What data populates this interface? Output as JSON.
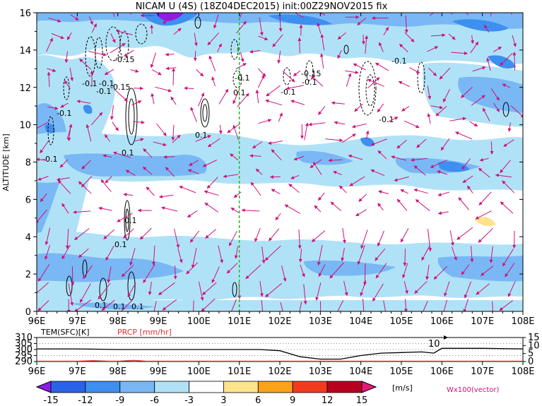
{
  "title": "NICAM U (4S) (18Z04DEC2015) init:00Z29NOV2015 fix",
  "chart_data": [
    {
      "type": "heatmap",
      "title": "NICAM U (4S) (18Z04DEC2015) init:00Z29NOV2015 fix",
      "xlabel": "",
      "ylabel": "ALTITUDE [km]",
      "x_ticks": [
        "96E",
        "97E",
        "98E",
        "99E",
        "100E",
        "101E",
        "102E",
        "103E",
        "104E",
        "105E",
        "106E",
        "107E",
        "108E"
      ],
      "y_ticks": [
        "0",
        "2",
        "4",
        "6",
        "8",
        "10",
        "12",
        "14",
        "16"
      ],
      "xlim": [
        96,
        108
      ],
      "ylim": [
        0,
        16
      ],
      "reference_line_lon": 101,
      "contour_labels": [
        "-0.15",
        "-0.1",
        "-0.1",
        "-0.1",
        "-0.15",
        "-0.1",
        "-0.1",
        "-0.15",
        "-0.1",
        "-0.1",
        "-0.1",
        "-0.1",
        "-0.1",
        "0.1",
        "0.1",
        "0.1",
        "0.1",
        "0.1",
        "0.1",
        "0.1",
        "0.1"
      ],
      "vector_label": "Wx100(vector)"
    },
    {
      "type": "line",
      "series": [
        {
          "name": "TEM(SFC)[K]",
          "color": "#000000",
          "x": [
            96,
            97,
            98,
            99,
            100,
            101,
            101.5,
            102,
            102.5,
            103,
            103.5,
            104,
            104.5,
            105,
            105.5,
            105.8,
            106,
            107,
            108
          ],
          "values": [
            300.5,
            300.5,
            300,
            300,
            300,
            300,
            300,
            299,
            294,
            292,
            292,
            295,
            297,
            297.5,
            298,
            297,
            301,
            301,
            300.5
          ]
        },
        {
          "name": "PRCP [mm/hr]",
          "color": "#e83030",
          "x": [
            96,
            97,
            97.4,
            97.8,
            98,
            98.4,
            98.7,
            99,
            108
          ],
          "values": [
            0,
            0,
            0.3,
            0,
            0,
            0.5,
            0,
            0,
            0
          ]
        }
      ],
      "left_ticks": [
        "310",
        "305",
        "300",
        "295",
        "290"
      ],
      "right_ticks": [
        "15",
        "10",
        "5",
        "0"
      ],
      "annotation": "10",
      "x_ticks": [
        "96E",
        "97E",
        "98E",
        "99E",
        "100E",
        "101E",
        "102E",
        "103E",
        "104E",
        "105E",
        "106E",
        "107E",
        "108E"
      ]
    }
  ],
  "colorbar": {
    "labels": [
      "-15",
      "-12",
      "-9",
      "-6",
      "-3",
      "3",
      "6",
      "9",
      "12",
      "15"
    ],
    "unit": "[m/s]",
    "colors": [
      "#8c1ee6",
      "#2a62e8",
      "#3d8ff0",
      "#79b8f5",
      "#b0e2f7",
      "#ffffff",
      "#fde38c",
      "#f9a21a",
      "#f23b1e",
      "#b8001e",
      "#e6197a"
    ]
  }
}
